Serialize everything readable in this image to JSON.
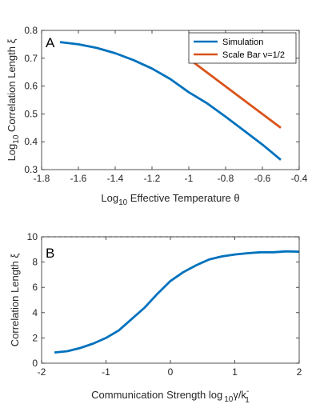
{
  "chart_data": [
    {
      "type": "line",
      "panel_label": "A",
      "xlabel_main": "Log",
      "xlabel_sub": "10",
      "xlabel_rest": " Effective Temperature θ",
      "ylabel_main": "Log",
      "ylabel_sub": "10",
      "ylabel_rest": " Correlation Length ξ",
      "xlim": [
        -1.8,
        -0.4
      ],
      "ylim": [
        0.3,
        0.8
      ],
      "xticks": [
        -1.8,
        -1.6,
        -1.4,
        -1.2,
        -1,
        -0.8,
        -0.6,
        -0.4
      ],
      "xtick_labels": [
        "-1.8",
        "-1.6",
        "-1.4",
        "-1.2",
        "-1",
        "-0.8",
        "-0.6",
        "-0.4"
      ],
      "yticks": [
        0.3,
        0.4,
        0.5,
        0.6,
        0.7,
        0.8
      ],
      "ytick_labels": [
        "0.3",
        "0.4",
        "0.5",
        "0.6",
        "0.7",
        "0.8"
      ],
      "legend_position": "top-right",
      "series": [
        {
          "name": "Simulation",
          "color": "#0072BD",
          "x": [
            -1.7,
            -1.6,
            -1.5,
            -1.4,
            -1.3,
            -1.2,
            -1.1,
            -1.0,
            -0.9,
            -0.8,
            -0.7,
            -0.6,
            -0.5
          ],
          "y": [
            0.758,
            0.75,
            0.737,
            0.718,
            0.693,
            0.663,
            0.625,
            0.578,
            0.538,
            0.49,
            0.44,
            0.39,
            0.335
          ]
        },
        {
          "name": "Scale Bar ν=1/2",
          "color": "#D95319",
          "x": [
            -1.0,
            -0.5
          ],
          "y": [
            0.698,
            0.45
          ]
        }
      ]
    },
    {
      "type": "line",
      "panel_label": "B",
      "xlabel_main": "Communication Strength log",
      "xlabel_sub": "10",
      "xlabel_rest": "γ/k",
      "xlabel_k_sup": "-",
      "xlabel_k_sub": "1",
      "ylabel": "Correlation Length ξ",
      "xlim": [
        -2,
        2
      ],
      "ylim": [
        0,
        10
      ],
      "xticks": [
        -2,
        -1,
        0,
        1,
        2
      ],
      "xtick_labels": [
        "-2",
        "-1",
        "0",
        "1",
        "2"
      ],
      "yticks": [
        0,
        2,
        4,
        6,
        8,
        10
      ],
      "ytick_labels": [
        "0",
        "2",
        "4",
        "6",
        "8",
        "10"
      ],
      "reference_line": {
        "y": 10,
        "style": "dashed"
      },
      "series": [
        {
          "color": "#0072BD",
          "x": [
            -1.8,
            -1.6,
            -1.4,
            -1.2,
            -1.0,
            -0.8,
            -0.6,
            -0.4,
            -0.2,
            0.0,
            0.2,
            0.4,
            0.6,
            0.8,
            1.0,
            1.2,
            1.4,
            1.6,
            1.8,
            2.0
          ],
          "y": [
            0.85,
            0.95,
            1.2,
            1.55,
            2.0,
            2.6,
            3.5,
            4.4,
            5.5,
            6.5,
            7.2,
            7.75,
            8.2,
            8.45,
            8.6,
            8.7,
            8.78,
            8.78,
            8.85,
            8.82
          ]
        }
      ]
    }
  ]
}
